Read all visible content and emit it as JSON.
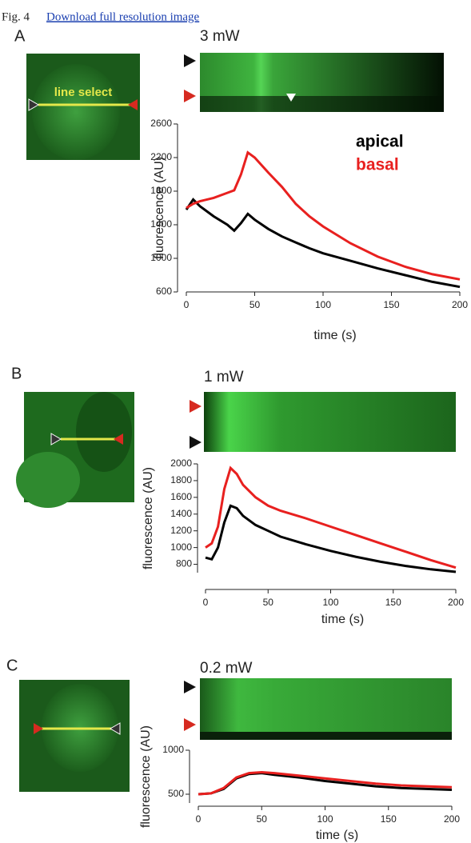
{
  "header": {
    "figure": "Fig. 4",
    "link": "Download full resolution image"
  },
  "chart_data": [
    {
      "type": "line",
      "panel_label": "A",
      "title": "3 mW",
      "annotation": "line select",
      "x_label": "time (s)",
      "y_label": "fluorescence (AU)",
      "x": [
        0,
        5,
        10,
        20,
        30,
        35,
        40,
        45,
        50,
        60,
        70,
        80,
        90,
        100,
        120,
        140,
        160,
        180,
        200
      ],
      "series": [
        {
          "name": "apical",
          "color": "#000000",
          "values": [
            1580,
            1700,
            1620,
            1500,
            1400,
            1330,
            1420,
            1530,
            1460,
            1350,
            1260,
            1190,
            1120,
            1060,
            970,
            880,
            800,
            720,
            660
          ]
        },
        {
          "name": "basal",
          "color": "#e8201f",
          "values": [
            1600,
            1650,
            1680,
            1720,
            1780,
            1810,
            2000,
            2260,
            2200,
            2020,
            1850,
            1650,
            1500,
            1380,
            1180,
            1020,
            900,
            810,
            750
          ]
        }
      ],
      "xlim": [
        0,
        200
      ],
      "xticks": [
        0,
        50,
        100,
        150,
        200
      ],
      "ylim": [
        600,
        2600
      ],
      "yticks": [
        600,
        1000,
        1400,
        1800,
        2200,
        2600
      ],
      "legend": "upper right"
    },
    {
      "type": "line",
      "panel_label": "B",
      "title": "1 mW",
      "x_label": "time (s)",
      "y_label": "fluorescence (AU)",
      "x": [
        0,
        5,
        10,
        15,
        20,
        25,
        30,
        40,
        50,
        60,
        80,
        100,
        120,
        140,
        160,
        180,
        200
      ],
      "series": [
        {
          "color": "#000000",
          "values": [
            880,
            860,
            1000,
            1300,
            1500,
            1470,
            1380,
            1270,
            1200,
            1130,
            1040,
            960,
            890,
            830,
            780,
            740,
            710
          ]
        },
        {
          "color": "#e8201f",
          "values": [
            1000,
            1050,
            1250,
            1700,
            1950,
            1880,
            1750,
            1600,
            1500,
            1440,
            1350,
            1250,
            1150,
            1050,
            950,
            850,
            760
          ]
        }
      ],
      "xlim": [
        0,
        200
      ],
      "xticks": [
        0,
        50,
        100,
        150,
        200
      ],
      "ylim": [
        700,
        2000
      ],
      "yticks": [
        800,
        1000,
        1200,
        1400,
        1600,
        1800,
        2000
      ]
    },
    {
      "type": "line",
      "panel_label": "C",
      "title": "0.2 mW",
      "x_label": "time (s)",
      "y_label": "fluorescence (AU)",
      "x": [
        0,
        10,
        20,
        30,
        40,
        50,
        60,
        80,
        100,
        120,
        140,
        160,
        180,
        200
      ],
      "series": [
        {
          "color": "#000000",
          "values": [
            500,
            510,
            560,
            680,
            730,
            740,
            720,
            690,
            650,
            620,
            590,
            570,
            560,
            550
          ]
        },
        {
          "color": "#e8201f",
          "values": [
            500,
            510,
            570,
            690,
            740,
            750,
            740,
            710,
            680,
            650,
            620,
            600,
            590,
            580
          ]
        }
      ],
      "xlim": [
        0,
        200
      ],
      "xticks": [
        0,
        50,
        100,
        150,
        200
      ],
      "ylim": [
        400,
        1000
      ],
      "yticks": [
        500,
        1000
      ]
    }
  ]
}
